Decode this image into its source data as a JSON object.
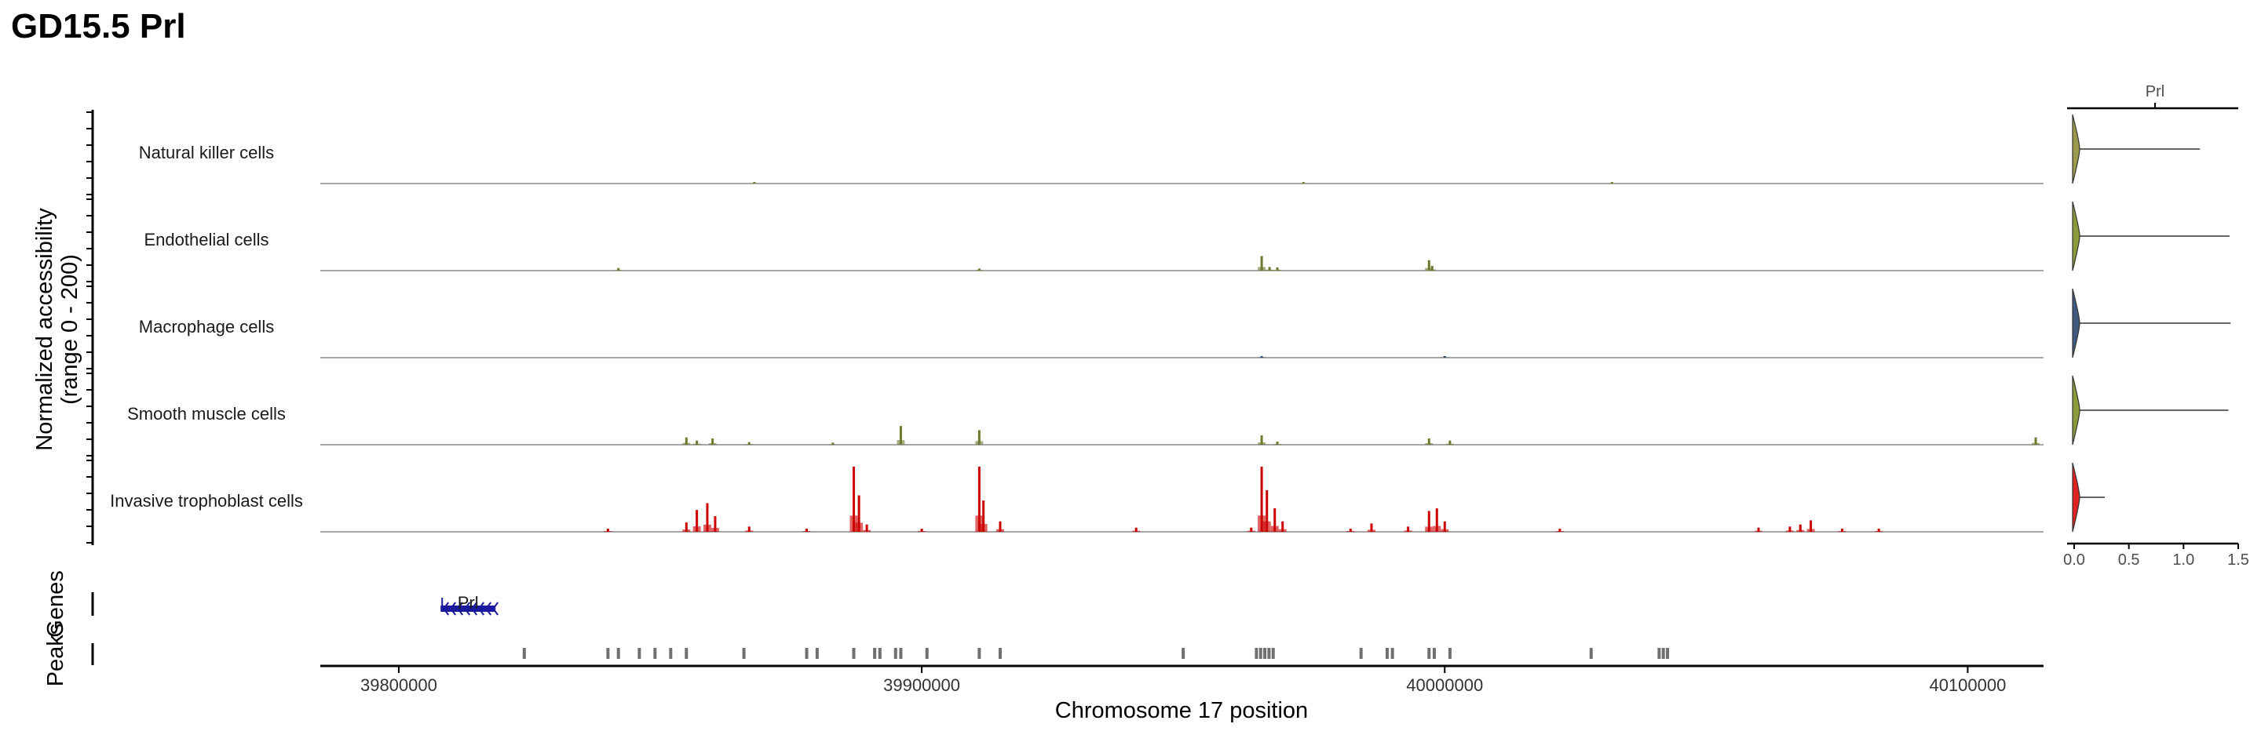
{
  "chart_data": {
    "type": "coverage",
    "title": "GD15.5 Prl",
    "ylabel": "Normalized accessibility\n(range 0 - 200)",
    "xlabel": "Chromosome 17 position",
    "y_range": [
      0,
      200
    ],
    "x_range": [
      39785000,
      40114500
    ],
    "x_ticks": [
      39800000,
      39900000,
      40000000,
      40100000
    ],
    "tracks": [
      {
        "name": "Natural killer cells",
        "color": "#7a7a3a",
        "peaks": [
          [
            39868000,
            3
          ],
          [
            39973000,
            2
          ],
          [
            40032000,
            2
          ]
        ]
      },
      {
        "name": "Endothelial cells",
        "color": "#6b7a2e",
        "peaks": [
          [
            39842000,
            5
          ],
          [
            39911000,
            4
          ],
          [
            39965000,
            28
          ],
          [
            39966500,
            7
          ],
          [
            39968000,
            6
          ],
          [
            39997000,
            20
          ],
          [
            39997600,
            9
          ]
        ]
      },
      {
        "name": "Macrophage cells",
        "color": "#2f4a6e",
        "peaks": [
          [
            39965000,
            3
          ],
          [
            40000000,
            2
          ]
        ]
      },
      {
        "name": "Smooth muscle cells",
        "color": "#6b7a2e",
        "peaks": [
          [
            39855000,
            14
          ],
          [
            39857000,
            8
          ],
          [
            39860000,
            12
          ],
          [
            39867000,
            5
          ],
          [
            39883000,
            4
          ],
          [
            39896000,
            36
          ],
          [
            39911000,
            28
          ],
          [
            39965000,
            18
          ],
          [
            39968000,
            6
          ],
          [
            39997000,
            12
          ],
          [
            40001000,
            8
          ],
          [
            40113000,
            14
          ]
        ]
      },
      {
        "name": "Invasive trophoblast cells",
        "color": "#cc0000",
        "peaks": [
          [
            39840000,
            6
          ],
          [
            39855000,
            18
          ],
          [
            39857000,
            42
          ],
          [
            39859000,
            55
          ],
          [
            39860500,
            30
          ],
          [
            39867000,
            10
          ],
          [
            39878000,
            6
          ],
          [
            39887000,
            140
          ],
          [
            39888000,
            70
          ],
          [
            39889500,
            14
          ],
          [
            39900000,
            6
          ],
          [
            39911000,
            130
          ],
          [
            39911800,
            60
          ],
          [
            39915000,
            20
          ],
          [
            39941000,
            8
          ],
          [
            39963000,
            8
          ],
          [
            39965000,
            125
          ],
          [
            39966000,
            80
          ],
          [
            39967500,
            45
          ],
          [
            39969000,
            20
          ],
          [
            39982000,
            6
          ],
          [
            39986000,
            16
          ],
          [
            39993000,
            10
          ],
          [
            39997000,
            40
          ],
          [
            39998500,
            45
          ],
          [
            40000000,
            20
          ],
          [
            40022000,
            6
          ],
          [
            40060000,
            8
          ],
          [
            40066000,
            10
          ],
          [
            40068000,
            14
          ],
          [
            40070000,
            22
          ],
          [
            40076000,
            6
          ],
          [
            40083000,
            6
          ]
        ]
      }
    ],
    "genes": [
      {
        "name": "Prl",
        "start": 39808000,
        "end": 39818500,
        "strand": "-"
      }
    ],
    "gene_row_label": "Genes",
    "peak_row_label": "Peaks",
    "peaks_regions": [
      39824000,
      39840000,
      39842000,
      39846000,
      39849000,
      39852000,
      39855000,
      39866000,
      39878000,
      39880000,
      39887000,
      39891000,
      39892000,
      39895000,
      39896000,
      39901000,
      39911000,
      39915000,
      39950000,
      39964000,
      39964800,
      39965600,
      39966400,
      39967200,
      39984000,
      39989000,
      39990000,
      39997000,
      39998000,
      40001000,
      40028000,
      40041000,
      40041800,
      40042600
    ],
    "violin": {
      "panel_label": "Prl",
      "x_range": [
        0,
        1.5
      ],
      "x_ticks": [
        "0.0",
        "0.5",
        "1.0",
        "1.5"
      ],
      "rows": [
        {
          "name": "Natural killer cells",
          "max": 1.15,
          "color": "#9a9a4a"
        },
        {
          "name": "Endothelial cells",
          "max": 1.42,
          "color": "#8a9a3a"
        },
        {
          "name": "Macrophage cells",
          "max": 1.43,
          "color": "#3f5a7e"
        },
        {
          "name": "Smooth muscle cells",
          "max": 1.41,
          "color": "#8a9a3a"
        },
        {
          "name": "Invasive trophoblast cells",
          "max": 0.28,
          "color": "#dd2222"
        }
      ]
    }
  }
}
